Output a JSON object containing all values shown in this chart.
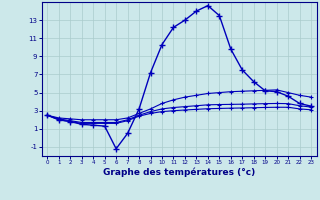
{
  "xlabel": "Graphe des températures (°c)",
  "background_color": "#cce8ea",
  "grid_color": "#aacccc",
  "line_color": "#0000bb",
  "hours": [
    0,
    1,
    2,
    3,
    4,
    5,
    6,
    7,
    8,
    9,
    10,
    11,
    12,
    13,
    14,
    15,
    16,
    17,
    18,
    19,
    20,
    21,
    22,
    23
  ],
  "curve_main": [
    2.5,
    2.0,
    1.8,
    1.5,
    1.4,
    1.3,
    -1.2,
    0.5,
    3.2,
    7.2,
    10.3,
    12.2,
    13.0,
    14.0,
    14.6,
    13.5,
    9.8,
    7.5,
    6.2,
    5.2,
    5.1,
    4.6,
    3.8,
    3.5
  ],
  "curve_upper": [
    2.5,
    2.2,
    2.1,
    2.0,
    2.0,
    2.0,
    2.0,
    2.2,
    2.7,
    3.2,
    3.8,
    4.2,
    4.5,
    4.7,
    4.9,
    5.0,
    5.1,
    5.15,
    5.2,
    5.25,
    5.3,
    5.0,
    4.7,
    4.5
  ],
  "curve_mid": [
    2.5,
    2.1,
    1.9,
    1.7,
    1.7,
    1.7,
    1.7,
    2.0,
    2.5,
    2.9,
    3.2,
    3.35,
    3.45,
    3.55,
    3.65,
    3.68,
    3.7,
    3.72,
    3.75,
    3.78,
    3.8,
    3.78,
    3.55,
    3.4
  ],
  "curve_low": [
    2.5,
    2.0,
    1.8,
    1.6,
    1.6,
    1.6,
    1.6,
    1.9,
    2.4,
    2.7,
    2.9,
    3.0,
    3.08,
    3.15,
    3.22,
    3.25,
    3.28,
    3.3,
    3.33,
    3.36,
    3.38,
    3.38,
    3.2,
    3.1
  ],
  "ylim": [
    -2.0,
    15.0
  ],
  "yticks": [
    -1,
    1,
    3,
    5,
    7,
    9,
    11,
    13
  ],
  "xlim": [
    -0.5,
    23.5
  ],
  "xticks": [
    0,
    1,
    2,
    3,
    4,
    5,
    6,
    7,
    8,
    9,
    10,
    11,
    12,
    13,
    14,
    15,
    16,
    17,
    18,
    19,
    20,
    21,
    22,
    23
  ]
}
